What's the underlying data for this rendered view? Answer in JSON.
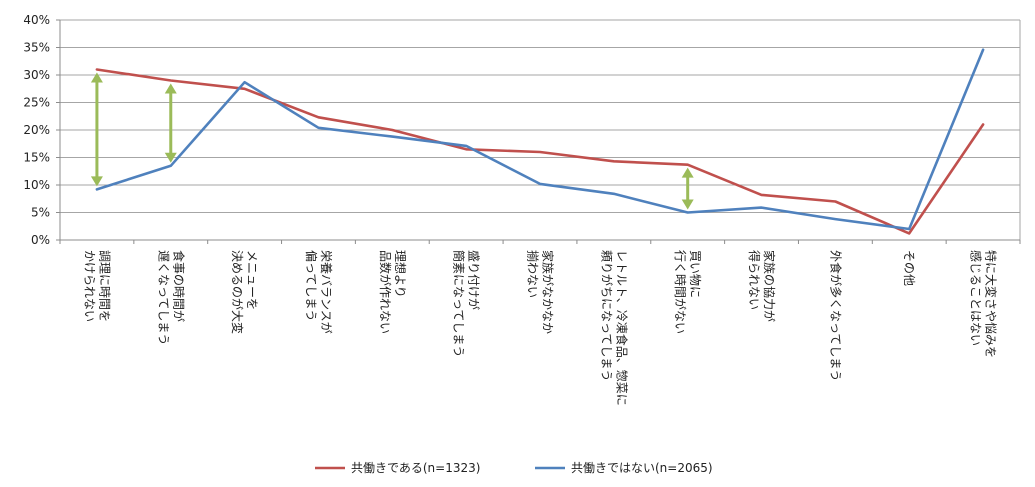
{
  "chart_data": {
    "type": "line",
    "categories": [
      [
        "調理に時間を",
        "かけられない"
      ],
      [
        "食事の時間が",
        "遅くなってしまう"
      ],
      [
        "メニューを",
        "決めるのが大変"
      ],
      [
        "栄養バランスが",
        "偏ってしまう"
      ],
      [
        "理想より",
        "品数が作れない"
      ],
      [
        "盛り付けが",
        "簡素になってしまう"
      ],
      [
        "家族がなかなか",
        "揃わない"
      ],
      [
        "レトルト、冷凍食品、惣菜に",
        "頼りがちになってしまう"
      ],
      [
        "買い物に",
        "行く時間がない"
      ],
      [
        "家族の協力が",
        "得られない"
      ],
      [
        "外食が多くなってしまう"
      ],
      [
        "その他"
      ],
      [
        "特に大変さや悩みを",
        "感じることはない"
      ]
    ],
    "series": [
      {
        "name": "共働きである(n=1323)",
        "color": "#c0504d",
        "values": [
          31.0,
          29.0,
          27.5,
          22.3,
          20.0,
          16.5,
          16.0,
          14.3,
          13.7,
          8.2,
          7.0,
          1.2,
          21.0
        ]
      },
      {
        "name": "共働きではない(n=2065)",
        "color": "#4f81bd",
        "values": [
          9.2,
          13.5,
          28.7,
          20.4,
          18.8,
          17.1,
          10.2,
          8.4,
          5.0,
          5.9,
          3.8,
          2.0,
          34.6
        ]
      }
    ],
    "yticks": [
      "0%",
      "5%",
      "10%",
      "15%",
      "20%",
      "25%",
      "30%",
      "35%",
      "40%"
    ],
    "ylim": [
      0,
      40
    ],
    "grid": true,
    "legend": "bottom",
    "gap_arrows": {
      "category_indices": [
        0,
        1,
        8
      ],
      "color": "#9bbb59"
    }
  }
}
